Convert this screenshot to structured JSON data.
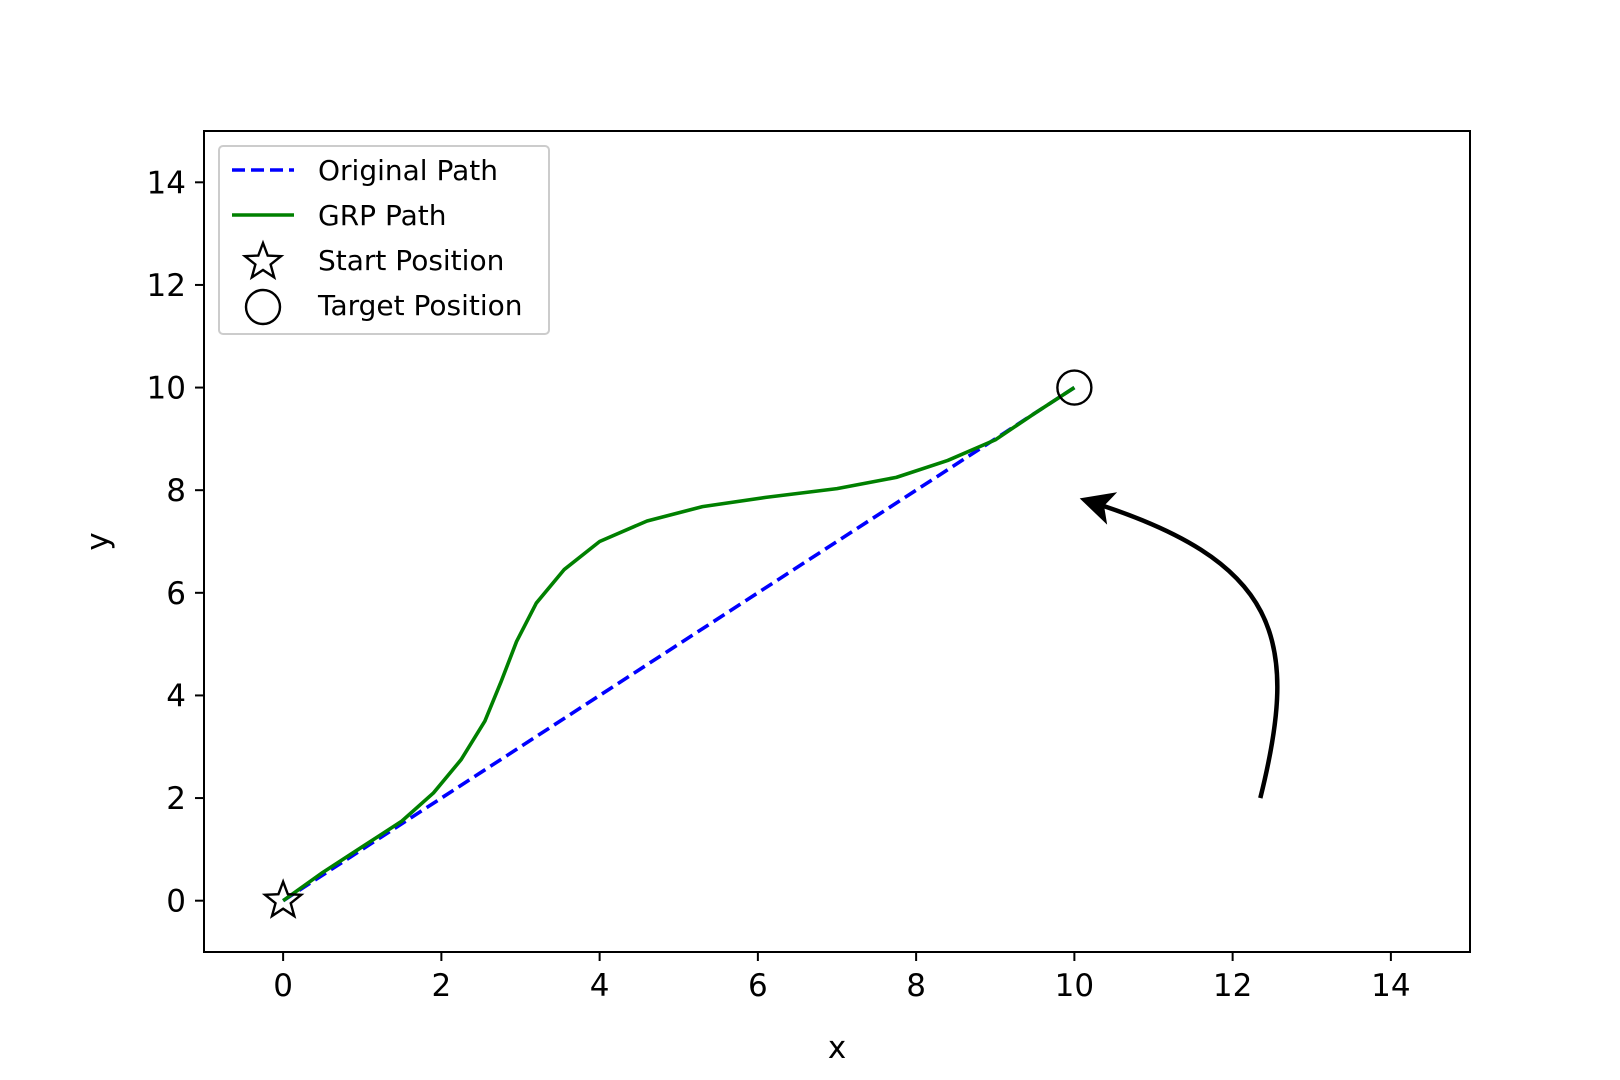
{
  "chart_data": {
    "type": "line",
    "title": "",
    "xlabel": "x",
    "ylabel": "y",
    "xlim": [
      -1,
      15
    ],
    "ylim": [
      -1,
      15
    ],
    "xticks": [
      "0",
      "2",
      "4",
      "6",
      "8",
      "10",
      "12",
      "14"
    ],
    "yticks": [
      "0",
      "2",
      "4",
      "6",
      "8",
      "10",
      "12",
      "14"
    ],
    "grid": false,
    "legend_position": "top-left",
    "legend": [
      {
        "label": "Original Path",
        "style": "dashed-line",
        "color": "#0000ff"
      },
      {
        "label": "GRP Path",
        "style": "solid-line",
        "color": "#008000"
      },
      {
        "label": "Start Position",
        "style": "star-marker",
        "color": "#000000"
      },
      {
        "label": "Target Position",
        "style": "circle-marker",
        "color": "#000000"
      }
    ],
    "series": [
      {
        "name": "Original Path",
        "color": "#0000ff",
        "linestyle": "dashed",
        "x": [
          0,
          10
        ],
        "y": [
          0,
          10
        ]
      },
      {
        "name": "GRP Path",
        "color": "#008000",
        "linestyle": "solid",
        "x": [
          0,
          0.5,
          1.0,
          1.5,
          1.9,
          2.25,
          2.55,
          2.75,
          2.95,
          3.2,
          3.55,
          4.0,
          4.6,
          5.3,
          6.1,
          7.0,
          7.75,
          8.4,
          9.0,
          9.5,
          10.0
        ],
        "y": [
          0,
          0.55,
          1.05,
          1.55,
          2.1,
          2.75,
          3.5,
          4.25,
          5.05,
          5.8,
          6.45,
          7.0,
          7.4,
          7.68,
          7.86,
          8.03,
          8.25,
          8.58,
          8.98,
          9.5,
          10.0
        ]
      }
    ],
    "markers": [
      {
        "name": "Start Position",
        "shape": "star",
        "x": 0,
        "y": 0
      },
      {
        "name": "Target Position",
        "shape": "circle",
        "x": 10,
        "y": 10
      }
    ],
    "annotations": [
      {
        "type": "curved-arrow",
        "color": "#000000",
        "from": [
          12.35,
          2.0
        ],
        "to": [
          10.15,
          7.8
        ]
      }
    ]
  }
}
